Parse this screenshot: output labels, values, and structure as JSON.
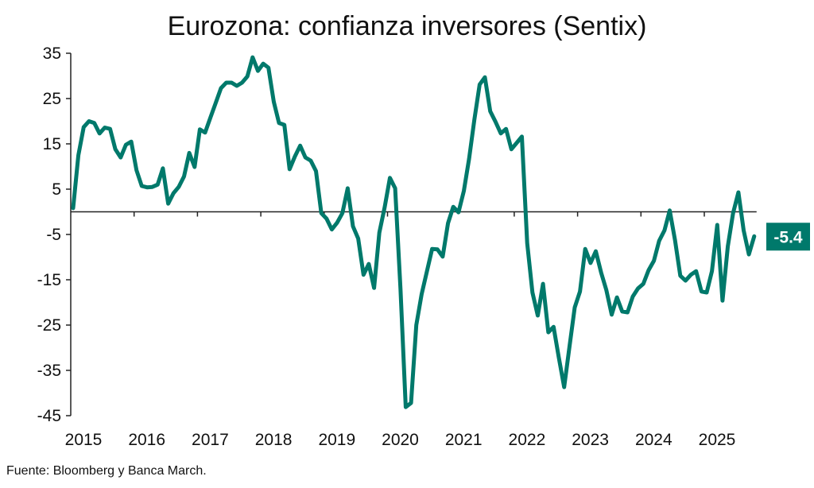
{
  "chart_data": {
    "type": "line",
    "title": "Eurozona: confianza inversores (Sentix)",
    "xlabel": "",
    "ylabel": "",
    "ylim": [
      -45,
      35
    ],
    "yticks": [
      35,
      25,
      15,
      5,
      -5,
      -15,
      -25,
      -35,
      -45
    ],
    "ytick_labels": [
      "35",
      "25",
      "15",
      "5",
      "-5",
      "-15",
      "-25",
      "-35",
      "-45"
    ],
    "xticks": [
      "2015",
      "2016",
      "2017",
      "2018",
      "2019",
      "2020",
      "2021",
      "2022",
      "2023",
      "2024",
      "2025"
    ],
    "x_start": "2015-01",
    "x_frequency": "monthly",
    "grid": false,
    "zero_line": true,
    "series": [
      {
        "name": "Sentix Eurozona",
        "color": "#00796B",
        "values": [
          0.8,
          12.5,
          18.7,
          20.0,
          19.6,
          17.3,
          18.6,
          18.3,
          13.8,
          12.0,
          14.8,
          15.5,
          9.2,
          5.7,
          5.4,
          5.5,
          6.0,
          9.6,
          1.8,
          4.1,
          5.5,
          7.8,
          13.0,
          9.9,
          18.2,
          17.5,
          20.8,
          24.0,
          27.3,
          28.5,
          28.5,
          27.8,
          28.5,
          29.9,
          34.1,
          31.1,
          32.7,
          31.8,
          24.3,
          19.6,
          19.2,
          9.4,
          12.2,
          14.6,
          12.0,
          11.3,
          9.0,
          -0.3,
          -1.5,
          -3.9,
          -2.4,
          -0.3,
          5.2,
          -3.2,
          -5.9,
          -13.9,
          -11.5,
          -16.8,
          -4.6,
          1.0,
          7.5,
          5.2,
          -17.0,
          -43.1,
          -42.2,
          -25.0,
          -18.2,
          -13.2,
          -8.2,
          -8.3,
          -9.9,
          -2.5,
          1.1,
          -0.1,
          4.6,
          11.7,
          20.4,
          28.1,
          29.7,
          22.2,
          19.9,
          17.3,
          18.3,
          13.8,
          15.2,
          16.6,
          -6.9,
          -17.8,
          -22.9,
          -15.9,
          -26.6,
          -25.4,
          -32.2,
          -38.7,
          -29.9,
          -21.1,
          -17.6,
          -8.2,
          -11.3,
          -8.7,
          -13.4,
          -17.3,
          -22.7,
          -18.9,
          -22.0,
          -22.2,
          -18.7,
          -16.9,
          -15.9,
          -12.9,
          -10.8,
          -6.4,
          -4.1,
          0.3,
          -6.2,
          -14.1,
          -15.2,
          -13.9,
          -13.1,
          -17.6,
          -17.8,
          -13.1,
          -2.9,
          -19.6,
          -7.6,
          -0.3,
          4.3,
          -4.1,
          -9.4,
          -5.4
        ]
      }
    ],
    "annotations": [
      {
        "text": "-5.4",
        "type": "last-value-label",
        "background": "#00796B",
        "text_color": "#FFFFFF"
      }
    ],
    "source": "Fuente: Bloomberg y Banca March."
  }
}
